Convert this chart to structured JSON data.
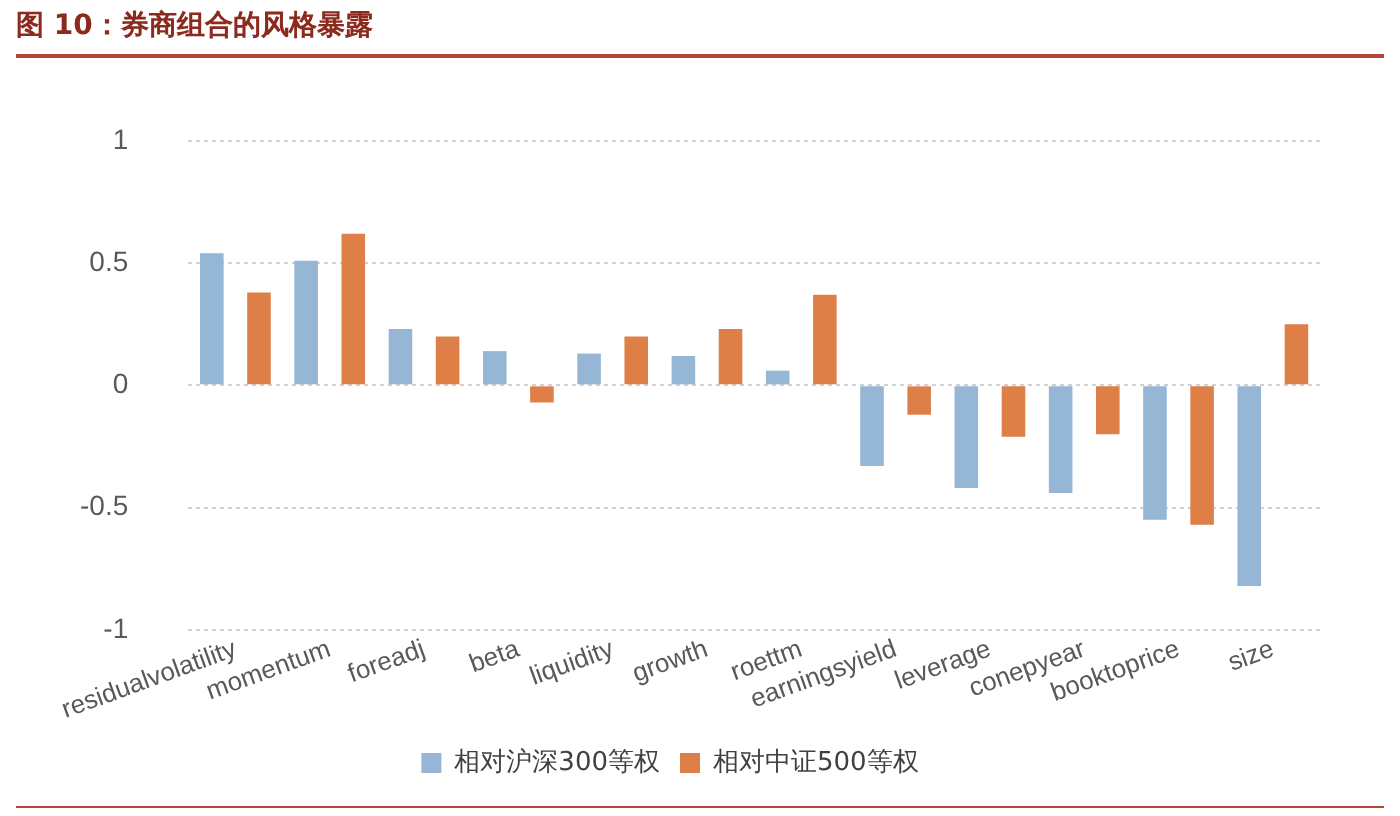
{
  "chart_data": {
    "type": "bar",
    "title": "图 10：券商组合的风格暴露",
    "categories": [
      "residualvolatility",
      "momentum",
      "foreadj",
      "beta",
      "liquidity",
      "growth",
      "roettm",
      "earningsyield",
      "leverage",
      "conepyear",
      "booktoprice",
      "size"
    ],
    "series": [
      {
        "name": "相对沪深300等权",
        "color": "#95b6d4",
        "values": [
          0.54,
          0.51,
          0.23,
          0.14,
          0.13,
          0.12,
          0.06,
          -0.33,
          -0.42,
          -0.44,
          -0.55,
          -0.82
        ]
      },
      {
        "name": "相对中证500等权",
        "color": "#de7f47",
        "values": [
          0.38,
          0.62,
          0.2,
          -0.07,
          0.2,
          0.23,
          0.37,
          -0.12,
          -0.21,
          -0.2,
          -0.57,
          0.25
        ]
      }
    ],
    "ylim": [
      -1,
      1
    ],
    "yticks": [
      -1,
      -0.5,
      0,
      0.5,
      1
    ],
    "grid": "y",
    "legend": "bottom"
  }
}
